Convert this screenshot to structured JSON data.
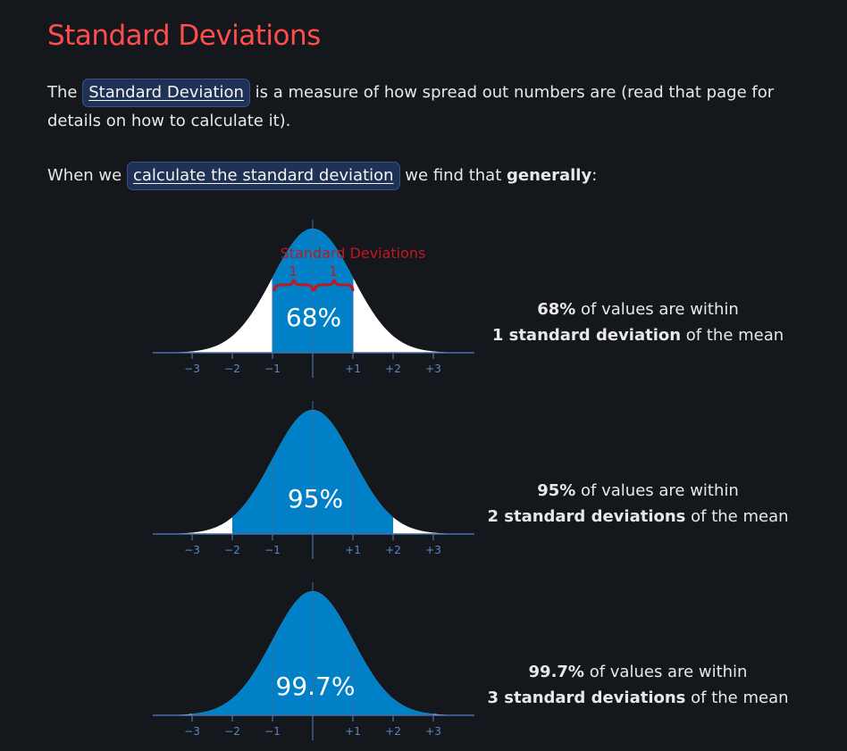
{
  "page": {
    "title": "Standard Deviations",
    "intro": {
      "prefix": "The",
      "link": "Standard Deviation",
      "suffix": "is a measure of how spread out numbers are (read that page for details on how to calculate it)."
    },
    "general": {
      "prefix": "When we",
      "link": "calculate the standard deviation",
      "middle": "we find that",
      "bold": "generally",
      "suffix": ":"
    }
  },
  "axis": {
    "ticks": [
      "−3",
      "−2",
      "−1",
      "+1",
      "+2",
      "+3"
    ]
  },
  "annotation": {
    "title": "Standard Deviations",
    "left_one": "1",
    "right_one": "1"
  },
  "diagrams": [
    {
      "percent": "68%",
      "shaded_sd": 1,
      "desc_bold_1": "68%",
      "desc_text_1": "of values are within",
      "desc_bold_2": "1 standard deviation",
      "desc_text_2": "of the mean"
    },
    {
      "percent": "95%",
      "shaded_sd": 2,
      "desc_bold_1": "95%",
      "desc_text_1": "of values are within",
      "desc_bold_2": "2 standard deviations",
      "desc_text_2": "of the mean"
    },
    {
      "percent": "99.7%",
      "shaded_sd": 3,
      "desc_bold_1": "99.7%",
      "desc_text_1": "of values are within",
      "desc_bold_2": "3 standard deviations",
      "desc_text_2": "of the mean"
    }
  ],
  "colors": {
    "title": "#ff4d4d",
    "shade": "#0081c7",
    "tail": "#ffffff",
    "axis": "#4a6fa8",
    "annotation": "#c0181f",
    "link_bg": "#1f3154"
  }
}
